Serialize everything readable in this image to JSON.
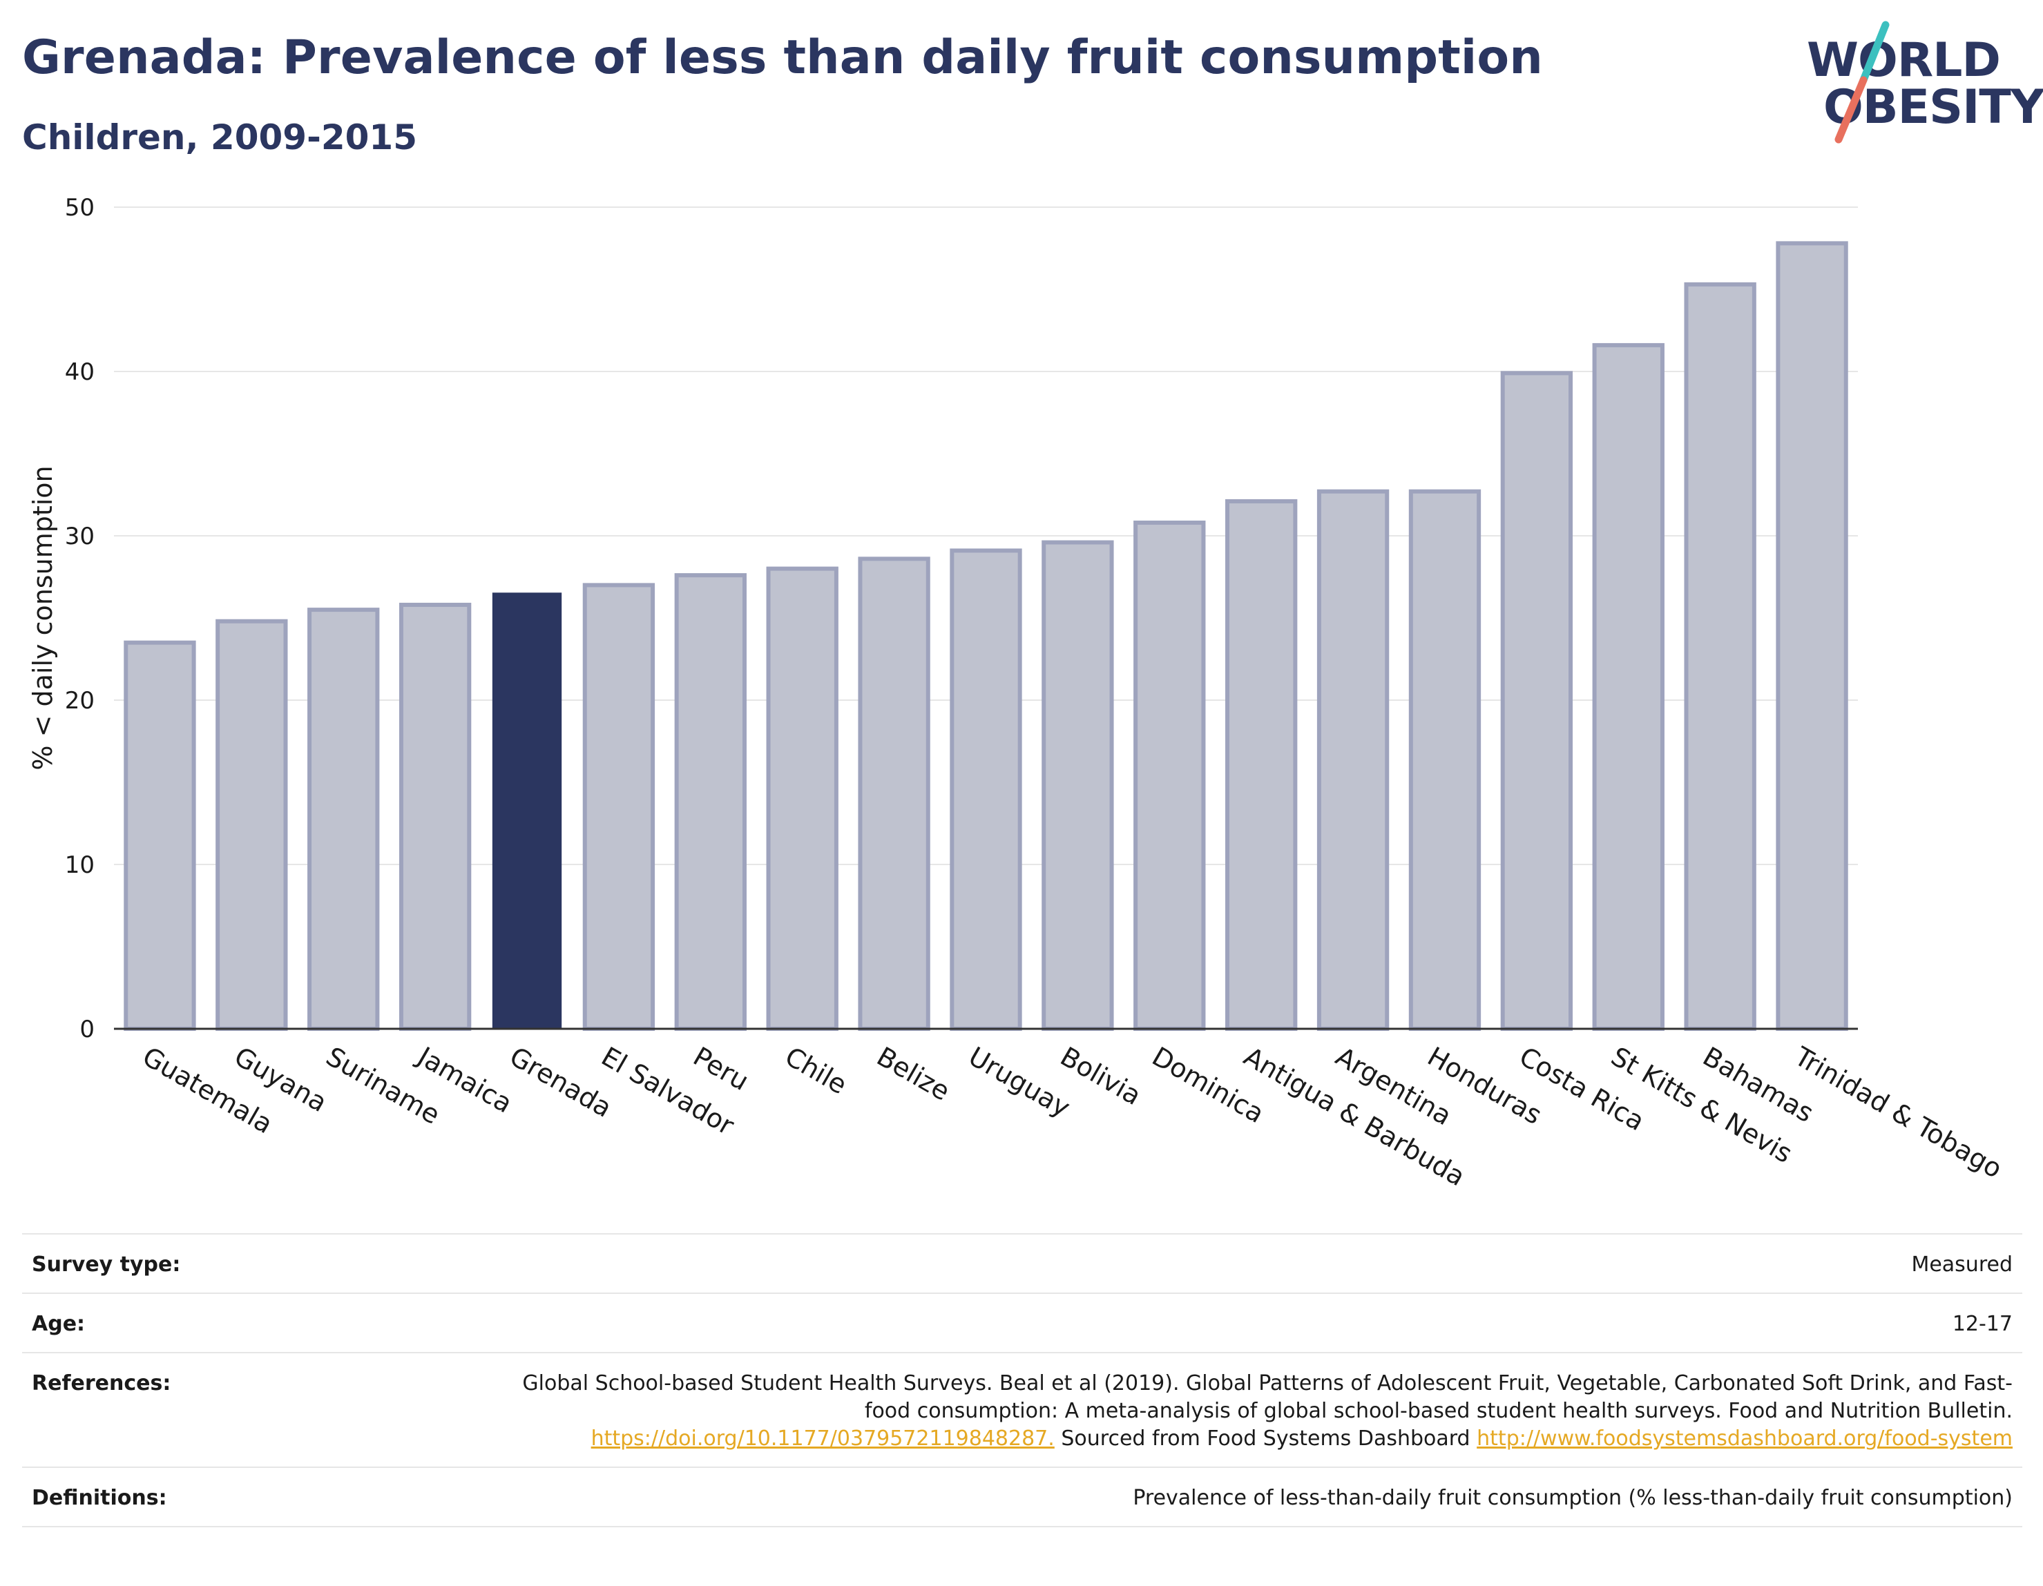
{
  "header": {
    "title": "Grenada: Prevalence of less than daily fruit consumption",
    "subtitle": "Children, 2009-2015"
  },
  "logo": {
    "line1": "WORLD",
    "line2": "OBESITY",
    "colors": {
      "text": "#2b3660",
      "slash_top": "#3cc0bf",
      "slash_bottom": "#e8705e"
    }
  },
  "chart_data": {
    "type": "bar",
    "title": "Grenada: Prevalence of less than daily fruit consumption",
    "subtitle": "Children, 2009-2015",
    "xlabel": "",
    "ylabel": "% < daily consumption",
    "ylim": [
      0,
      50
    ],
    "yticks": [
      0,
      10,
      20,
      30,
      40,
      50
    ],
    "grid": true,
    "legend": "none",
    "highlight": "Grenada",
    "colors": {
      "bar": "#bfc2cf",
      "bar_outline": "#9ea3bd",
      "highlight": "#2b3660",
      "grid": "#e6e6e6"
    },
    "categories": [
      "Guatemala",
      "Guyana",
      "Suriname",
      "Jamaica",
      "Grenada",
      "El Salvador",
      "Peru",
      "Chile",
      "Belize",
      "Uruguay",
      "Bolivia",
      "Dominica",
      "Antigua & Barbuda",
      "Argentina",
      "Honduras",
      "Costa Rica",
      "St Kitts & Nevis",
      "Bahamas",
      "Trinidad & Tobago"
    ],
    "values": [
      23.5,
      24.8,
      25.5,
      25.8,
      26.5,
      27.0,
      27.6,
      28.0,
      28.6,
      29.1,
      29.6,
      30.8,
      32.1,
      32.7,
      32.7,
      39.9,
      41.6,
      45.3,
      47.8
    ]
  },
  "meta": [
    {
      "key": "Survey type:",
      "value": "Measured"
    },
    {
      "key": "Age:",
      "value": "12-17"
    },
    {
      "key": "References:",
      "value_part1": "Global School-based Student Health Surveys. Beal et al (2019). Global Patterns of Adolescent Fruit, Vegetable, Carbonated Soft Drink, and Fast-food consumption: A meta-analysis of global school-based student health surveys. Food and Nutrition Bulletin.",
      "link1": "https://doi.org/10.1177/0379572119848287.",
      "value_part2": "Sourced from Food Systems Dashboard",
      "link2": "http://www.foodsystemsdashboard.org/food-system"
    },
    {
      "key": "Definitions:",
      "value": "Prevalence of less-than-daily fruit consumption (% less-than-daily fruit consumption)"
    }
  ]
}
